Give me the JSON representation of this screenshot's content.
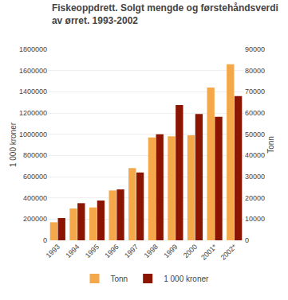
{
  "chart_data": {
    "type": "bar",
    "title": "Fiskeoppdrett. Solgt mengde og førstehåndsverdi av ørret. 1993-2002",
    "categories": [
      "1993",
      "1994",
      "1995",
      "1996",
      "1997",
      "1998",
      "1999",
      "2000",
      "2001*",
      "2002*"
    ],
    "series": [
      {
        "name": "Tonn",
        "color": "#F5A84A",
        "axis": "y2",
        "values": [
          8500,
          15000,
          15500,
          23500,
          34000,
          48500,
          49000,
          49500,
          72000,
          83000
        ]
      },
      {
        "name": "1 000 kroner",
        "color": "#8B1500",
        "values": [
          210000,
          350000,
          375000,
          480000,
          640000,
          1000000,
          1275000,
          1190000,
          1165000,
          1360000
        ]
      }
    ],
    "ylabel": "1 000 kroner",
    "y2label": "Tonn",
    "ylim": [
      0,
      1800000
    ],
    "yticks": [
      0,
      200000,
      400000,
      600000,
      800000,
      1000000,
      1200000,
      1400000,
      1600000,
      1800000
    ],
    "y2lim": [
      0,
      90000
    ],
    "y2ticks": [
      0,
      10000,
      20000,
      30000,
      40000,
      50000,
      60000,
      70000,
      80000,
      90000
    ],
    "grid": true,
    "legend": "bottom"
  }
}
